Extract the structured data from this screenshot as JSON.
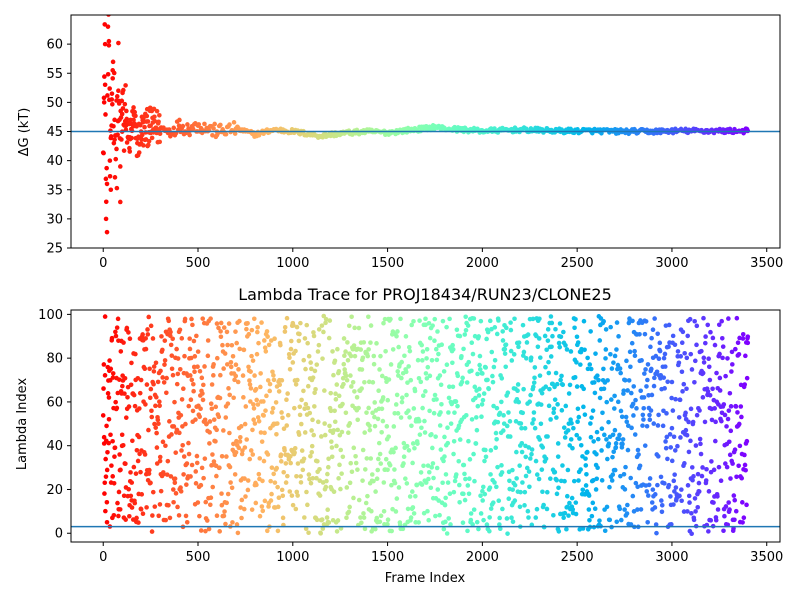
{
  "chart_data": [
    {
      "type": "scatter",
      "title": "",
      "xlabel": "",
      "ylabel": "ΔG (kT)",
      "xlim": [
        -170,
        3570
      ],
      "ylim": [
        25,
        65
      ],
      "xticks": [
        0,
        500,
        1000,
        1500,
        2000,
        2500,
        3000,
        3500
      ],
      "yticks": [
        25,
        30,
        35,
        40,
        45,
        50,
        55,
        60
      ],
      "reference_line": 45,
      "reference_line_color": "#1f77b4",
      "colormap": "rainbow",
      "grid": false,
      "series": [
        {
          "x": [
            5,
            10,
            15,
            20,
            25,
            30,
            35,
            40,
            45,
            50,
            60,
            70,
            80,
            90,
            100,
            120,
            140,
            160,
            180,
            200,
            250,
            300,
            350,
            400,
            450,
            500,
            550,
            600,
            700,
            800,
            900,
            1000,
            1100,
            1150,
            1200,
            1300,
            1400,
            1500,
            1600,
            1700,
            1750,
            1800,
            1900,
            2000,
            2100,
            2200,
            2300,
            2400,
            2500,
            2600,
            2700,
            2800,
            2900,
            3000,
            3100,
            3200,
            3300,
            3400
          ],
          "y": [
            50,
            60,
            30,
            36,
            63,
            60.5,
            40,
            35,
            50.5,
            55.5,
            47,
            42,
            52,
            39,
            48,
            46,
            44,
            47,
            43,
            45,
            46,
            45.5,
            45,
            46,
            45.5,
            46,
            45.5,
            45,
            45.5,
            44.5,
            45.3,
            45,
            44.5,
            44.2,
            44.5,
            44.8,
            45,
            44.8,
            45.2,
            45.5,
            45.8,
            45.5,
            45.3,
            45.1,
            45.2,
            45.3,
            45.2,
            45.1,
            45.1,
            45.1,
            45,
            45,
            45,
            45.1,
            45.1,
            45.1,
            45.1,
            45.1
          ]
        }
      ]
    },
    {
      "type": "scatter",
      "title": "Lambda Trace for PROJ18434/RUN23/CLONE25",
      "xlabel": "Frame Index",
      "ylabel": "Lambda Index",
      "xlim": [
        -170,
        3570
      ],
      "ylim": [
        -4,
        102
      ],
      "xticks": [
        0,
        500,
        1000,
        1500,
        2000,
        2500,
        3000,
        3500
      ],
      "yticks": [
        0,
        20,
        40,
        60,
        80,
        100
      ],
      "reference_line": 3,
      "reference_line_color": "#1f77b4",
      "colormap": "rainbow",
      "grid": false,
      "series": [
        {
          "x": [
            5,
            10,
            20,
            30,
            50,
            80,
            100,
            150,
            200,
            300,
            400,
            500,
            600,
            700,
            800,
            900,
            1000,
            1100,
            1200,
            1300,
            1400,
            1500,
            1600,
            1700,
            1800,
            1900,
            2000,
            2100,
            2200,
            2300,
            2400,
            2500,
            2600,
            2700,
            2800,
            2900,
            3000,
            3100,
            3200,
            3300,
            3400
          ],
          "y": [
            41,
            99,
            5,
            62,
            26,
            88,
            45,
            15,
            70,
            33,
            92,
            58,
            8,
            77,
            22,
            50,
            96,
            37,
            64,
            12,
            84,
            29,
            55,
            98,
            44,
            18,
            73,
            60,
            3,
            89,
            35,
            67,
            20,
            81,
            10,
            93,
            48,
            25,
            70,
            56,
            87
          ]
        }
      ]
    }
  ]
}
